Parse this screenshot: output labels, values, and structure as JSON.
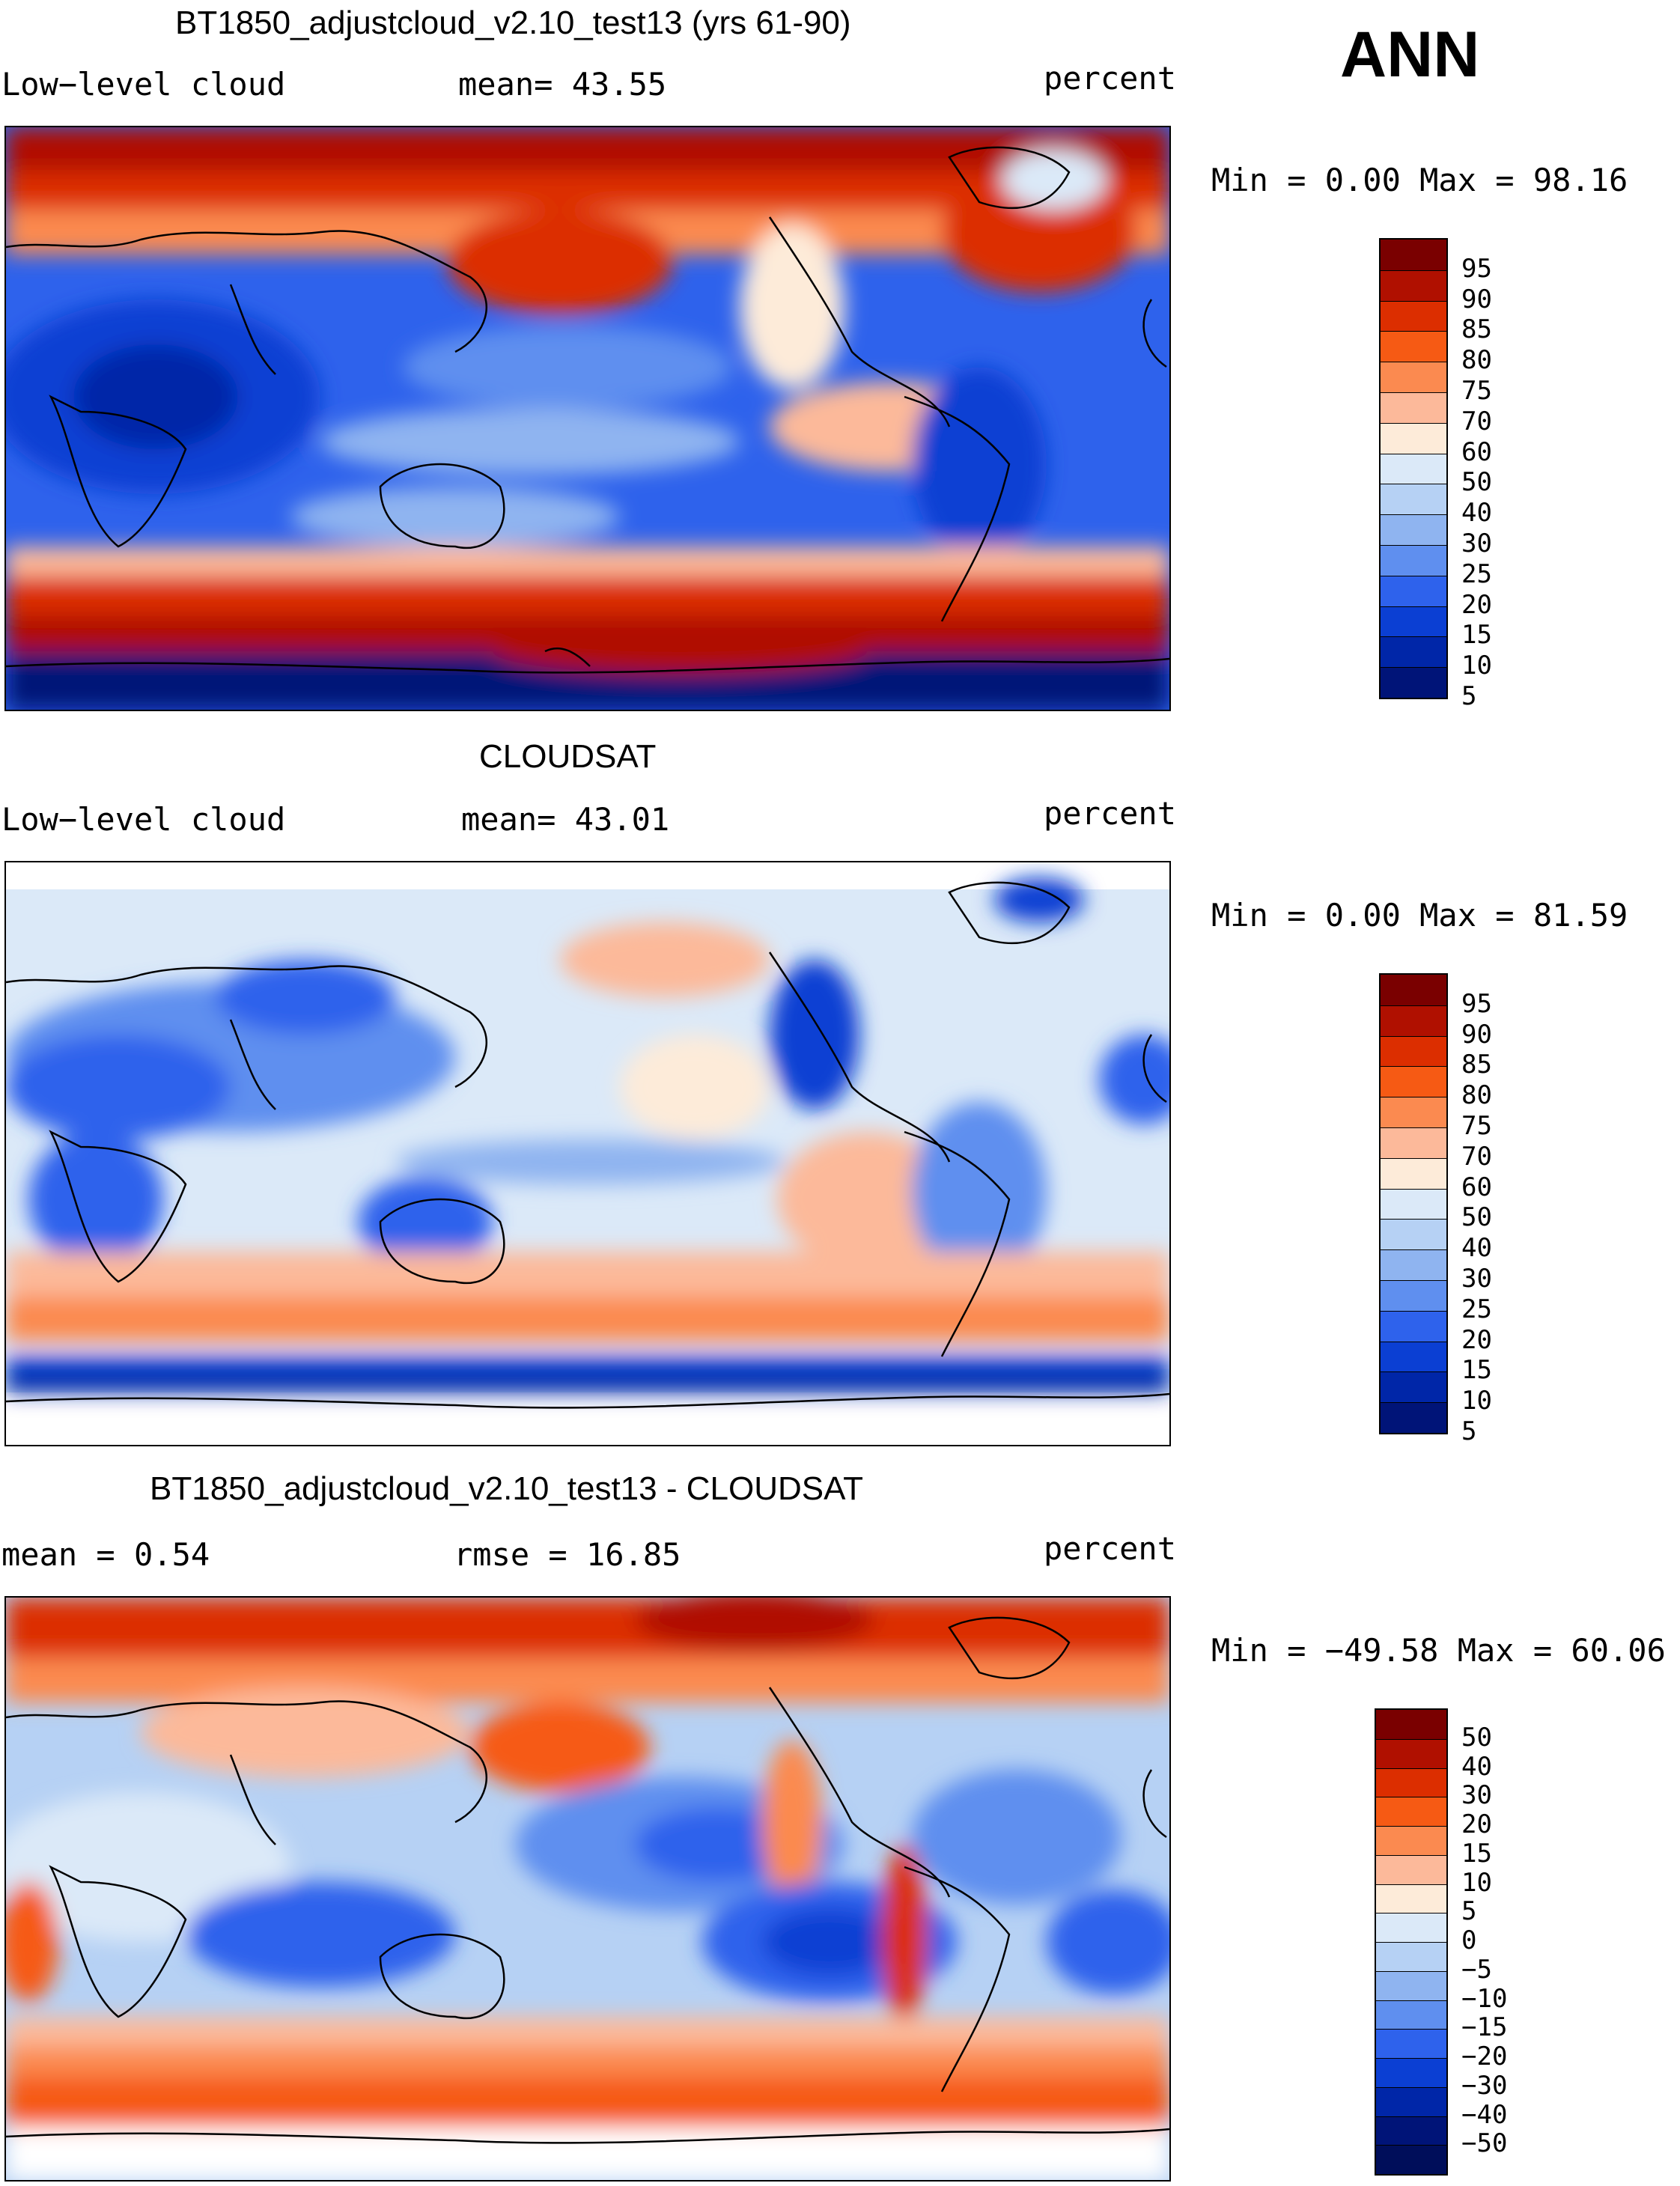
{
  "season": "ANN",
  "panels": [
    {
      "id": "model",
      "title": "BT1850_adjustcloud_v2.10_test13 (yrs 61-90)",
      "left_label": "Low−level cloud",
      "stat1": "mean=   43.55",
      "stat2": "",
      "units": "percent",
      "minmax": "Min =    0.00 Max =   98.16",
      "colorbar": {
        "colors": [
          "#7a0000",
          "#b01000",
          "#dc2e00",
          "#f65a14",
          "#fb8a50",
          "#fcb99a",
          "#fdebd9",
          "#dbe9f8",
          "#b6d1f4",
          "#8fb4f0",
          "#5f8fef",
          "#2e62ec",
          "#0b3fd3",
          "#0026a8",
          "#001478"
        ],
        "labels": [
          "95",
          "90",
          "85",
          "80",
          "75",
          "70",
          "60",
          "50",
          "40",
          "30",
          "25",
          "20",
          "15",
          "10",
          "5"
        ]
      }
    },
    {
      "id": "obs",
      "title": "CLOUDSAT",
      "left_label": "Low−level cloud",
      "stat1": "mean=   43.01",
      "stat2": "",
      "units": "percent",
      "minmax": "Min =    0.00 Max =   81.59",
      "colorbar": {
        "colors": [
          "#7a0000",
          "#b01000",
          "#dc2e00",
          "#f65a14",
          "#fb8a50",
          "#fcb99a",
          "#fdebd9",
          "#dbe9f8",
          "#b6d1f4",
          "#8fb4f0",
          "#5f8fef",
          "#2e62ec",
          "#0b3fd3",
          "#0026a8",
          "#001478"
        ],
        "labels": [
          "95",
          "90",
          "85",
          "80",
          "75",
          "70",
          "60",
          "50",
          "40",
          "30",
          "25",
          "20",
          "15",
          "10",
          "5"
        ]
      }
    },
    {
      "id": "diff",
      "title": "BT1850_adjustcloud_v2.10_test13 - CLOUDSAT",
      "left_label": "mean =    0.54",
      "stat1": "rmse =   16.85",
      "stat2": "",
      "units": "percent",
      "minmax": "Min = −49.58 Max =   60.06",
      "colorbar": {
        "colors": [
          "#7a0000",
          "#b01000",
          "#dc2e00",
          "#f65a14",
          "#fb8a50",
          "#fcb99a",
          "#fdebd9",
          "#dbe9f8",
          "#b6d1f4",
          "#8fb4f0",
          "#5f8fef",
          "#2e62ec",
          "#0b3fd3",
          "#0026a8",
          "#001478",
          "#000e5a"
        ],
        "labels": [
          "50",
          "40",
          "30",
          "20",
          "15",
          "10",
          "5",
          "0",
          "−5",
          "−10",
          "−15",
          "−20",
          "−30",
          "−40",
          "−50"
        ]
      }
    }
  ]
}
